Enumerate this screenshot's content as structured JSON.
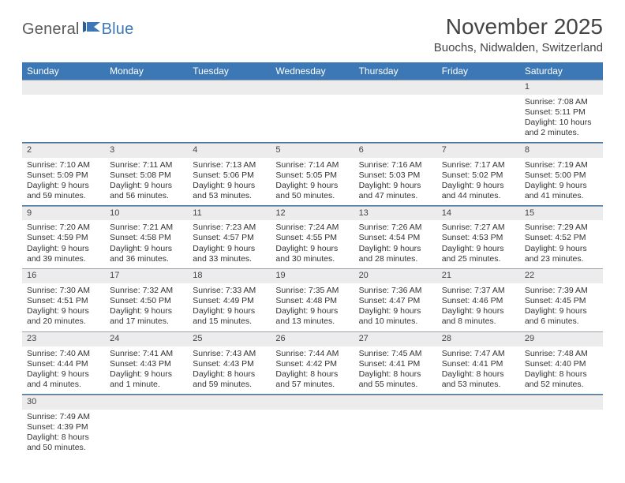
{
  "logo": {
    "text1": "General",
    "text2": "Blue",
    "color1": "#5a5a5a",
    "color2": "#3b78b5"
  },
  "title": "November 2025",
  "subtitle": "Buochs, Nidwalden, Switzerland",
  "colors": {
    "header_bg": "#3b78b5",
    "header_fg": "#ffffff",
    "daynum_bg": "#ececec",
    "divider": "#3b78b5",
    "daynum_border": "#9aa3ac"
  },
  "days_of_week": [
    "Sunday",
    "Monday",
    "Tuesday",
    "Wednesday",
    "Thursday",
    "Friday",
    "Saturday"
  ],
  "weeks": [
    {
      "nums": [
        "",
        "",
        "",
        "",
        "",
        "",
        "1"
      ],
      "cells": [
        null,
        null,
        null,
        null,
        null,
        null,
        {
          "sunrise": "7:08 AM",
          "sunset": "5:11 PM",
          "daylight": "10 hours and 2 minutes."
        }
      ]
    },
    {
      "nums": [
        "2",
        "3",
        "4",
        "5",
        "6",
        "7",
        "8"
      ],
      "cells": [
        {
          "sunrise": "7:10 AM",
          "sunset": "5:09 PM",
          "daylight": "9 hours and 59 minutes."
        },
        {
          "sunrise": "7:11 AM",
          "sunset": "5:08 PM",
          "daylight": "9 hours and 56 minutes."
        },
        {
          "sunrise": "7:13 AM",
          "sunset": "5:06 PM",
          "daylight": "9 hours and 53 minutes."
        },
        {
          "sunrise": "7:14 AM",
          "sunset": "5:05 PM",
          "daylight": "9 hours and 50 minutes."
        },
        {
          "sunrise": "7:16 AM",
          "sunset": "5:03 PM",
          "daylight": "9 hours and 47 minutes."
        },
        {
          "sunrise": "7:17 AM",
          "sunset": "5:02 PM",
          "daylight": "9 hours and 44 minutes."
        },
        {
          "sunrise": "7:19 AM",
          "sunset": "5:00 PM",
          "daylight": "9 hours and 41 minutes."
        }
      ]
    },
    {
      "nums": [
        "9",
        "10",
        "11",
        "12",
        "13",
        "14",
        "15"
      ],
      "cells": [
        {
          "sunrise": "7:20 AM",
          "sunset": "4:59 PM",
          "daylight": "9 hours and 39 minutes."
        },
        {
          "sunrise": "7:21 AM",
          "sunset": "4:58 PM",
          "daylight": "9 hours and 36 minutes."
        },
        {
          "sunrise": "7:23 AM",
          "sunset": "4:57 PM",
          "daylight": "9 hours and 33 minutes."
        },
        {
          "sunrise": "7:24 AM",
          "sunset": "4:55 PM",
          "daylight": "9 hours and 30 minutes."
        },
        {
          "sunrise": "7:26 AM",
          "sunset": "4:54 PM",
          "daylight": "9 hours and 28 minutes."
        },
        {
          "sunrise": "7:27 AM",
          "sunset": "4:53 PM",
          "daylight": "9 hours and 25 minutes."
        },
        {
          "sunrise": "7:29 AM",
          "sunset": "4:52 PM",
          "daylight": "9 hours and 23 minutes."
        }
      ]
    },
    {
      "nums": [
        "16",
        "17",
        "18",
        "19",
        "20",
        "21",
        "22"
      ],
      "cells": [
        {
          "sunrise": "7:30 AM",
          "sunset": "4:51 PM",
          "daylight": "9 hours and 20 minutes."
        },
        {
          "sunrise": "7:32 AM",
          "sunset": "4:50 PM",
          "daylight": "9 hours and 17 minutes."
        },
        {
          "sunrise": "7:33 AM",
          "sunset": "4:49 PM",
          "daylight": "9 hours and 15 minutes."
        },
        {
          "sunrise": "7:35 AM",
          "sunset": "4:48 PM",
          "daylight": "9 hours and 13 minutes."
        },
        {
          "sunrise": "7:36 AM",
          "sunset": "4:47 PM",
          "daylight": "9 hours and 10 minutes."
        },
        {
          "sunrise": "7:37 AM",
          "sunset": "4:46 PM",
          "daylight": "9 hours and 8 minutes."
        },
        {
          "sunrise": "7:39 AM",
          "sunset": "4:45 PM",
          "daylight": "9 hours and 6 minutes."
        }
      ]
    },
    {
      "nums": [
        "23",
        "24",
        "25",
        "26",
        "27",
        "28",
        "29"
      ],
      "cells": [
        {
          "sunrise": "7:40 AM",
          "sunset": "4:44 PM",
          "daylight": "9 hours and 4 minutes."
        },
        {
          "sunrise": "7:41 AM",
          "sunset": "4:43 PM",
          "daylight": "9 hours and 1 minute."
        },
        {
          "sunrise": "7:43 AM",
          "sunset": "4:43 PM",
          "daylight": "8 hours and 59 minutes."
        },
        {
          "sunrise": "7:44 AM",
          "sunset": "4:42 PM",
          "daylight": "8 hours and 57 minutes."
        },
        {
          "sunrise": "7:45 AM",
          "sunset": "4:41 PM",
          "daylight": "8 hours and 55 minutes."
        },
        {
          "sunrise": "7:47 AM",
          "sunset": "4:41 PM",
          "daylight": "8 hours and 53 minutes."
        },
        {
          "sunrise": "7:48 AM",
          "sunset": "4:40 PM",
          "daylight": "8 hours and 52 minutes."
        }
      ]
    },
    {
      "nums": [
        "30",
        "",
        "",
        "",
        "",
        "",
        ""
      ],
      "cells": [
        {
          "sunrise": "7:49 AM",
          "sunset": "4:39 PM",
          "daylight": "8 hours and 50 minutes."
        },
        null,
        null,
        null,
        null,
        null,
        null
      ]
    }
  ],
  "labels": {
    "sunrise": "Sunrise: ",
    "sunset": "Sunset: ",
    "daylight": "Daylight: "
  }
}
